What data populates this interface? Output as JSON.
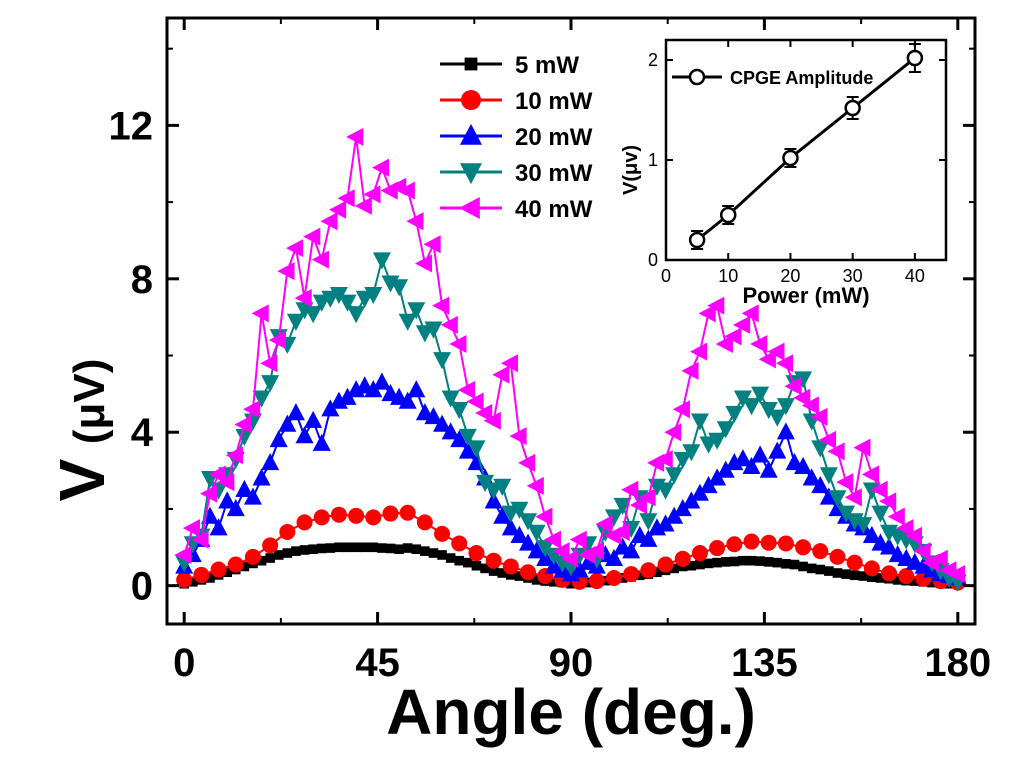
{
  "chart_data": [
    {
      "type": "line",
      "xlabel": "Angle (deg.)",
      "ylabel_main": "V",
      "ylabel_unit": "(μV)",
      "xlim": [
        -4,
        184
      ],
      "ylim": [
        -1,
        14.8
      ],
      "xticks": [
        0,
        45,
        90,
        135,
        180
      ],
      "xtick_labels": [
        "0",
        "45",
        "90",
        "135",
        "180"
      ],
      "yticks": [
        0,
        4,
        8,
        12
      ],
      "ytick_labels": [
        "0",
        "4",
        "8",
        "12"
      ],
      "legend_position": "top-center",
      "series": [
        {
          "name": "5 mW",
          "color": "#000000",
          "marker": "square",
          "x": [
            0,
            2,
            4,
            6,
            8,
            10,
            12,
            14,
            16,
            18,
            20,
            22,
            24,
            26,
            28,
            30,
            32,
            34,
            36,
            38,
            40,
            42,
            44,
            46,
            48,
            50,
            52,
            54,
            56,
            58,
            60,
            62,
            64,
            66,
            68,
            70,
            72,
            74,
            76,
            78,
            80,
            82,
            84,
            86,
            88,
            90,
            92,
            94,
            96,
            98,
            100,
            102,
            104,
            106,
            108,
            110,
            112,
            114,
            116,
            118,
            120,
            122,
            124,
            126,
            128,
            130,
            132,
            134,
            136,
            138,
            140,
            142,
            144,
            146,
            148,
            150,
            152,
            154,
            156,
            158,
            160,
            162,
            164,
            166,
            168,
            170,
            172,
            174,
            176,
            178,
            180
          ],
          "y": [
            0.05,
            0.1,
            0.15,
            0.2,
            0.28,
            0.35,
            0.42,
            0.5,
            0.58,
            0.65,
            0.72,
            0.8,
            0.85,
            0.9,
            0.93,
            0.95,
            0.97,
            0.98,
            1.0,
            1.0,
            1.0,
            1.0,
            1.0,
            0.98,
            0.97,
            0.95,
            0.98,
            0.95,
            0.9,
            0.85,
            0.8,
            0.72,
            0.65,
            0.6,
            0.52,
            0.45,
            0.38,
            0.33,
            0.28,
            0.25,
            0.2,
            0.15,
            0.12,
            0.1,
            0.08,
            0.05,
            0.05,
            0.08,
            0.1,
            0.13,
            0.16,
            0.2,
            0.23,
            0.27,
            0.3,
            0.35,
            0.4,
            0.45,
            0.5,
            0.52,
            0.55,
            0.58,
            0.6,
            0.62,
            0.63,
            0.65,
            0.65,
            0.64,
            0.62,
            0.6,
            0.57,
            0.55,
            0.5,
            0.45,
            0.42,
            0.38,
            0.33,
            0.3,
            0.27,
            0.25,
            0.22,
            0.2,
            0.18,
            0.15,
            0.13,
            0.12,
            0.1,
            0.08,
            0.06,
            0.05,
            0.05
          ]
        },
        {
          "name": "10 mW",
          "color": "#ff0000",
          "marker": "circle",
          "x": [
            0,
            4,
            8,
            12,
            16,
            20,
            24,
            28,
            32,
            36,
            40,
            44,
            48,
            52,
            56,
            60,
            64,
            68,
            72,
            76,
            80,
            84,
            88,
            92,
            96,
            100,
            104,
            108,
            112,
            116,
            120,
            124,
            128,
            132,
            136,
            140,
            144,
            148,
            152,
            156,
            160,
            164,
            168,
            172,
            176,
            180
          ],
          "y": [
            0.15,
            0.28,
            0.42,
            0.55,
            0.75,
            1.05,
            1.4,
            1.65,
            1.78,
            1.85,
            1.82,
            1.78,
            1.88,
            1.9,
            1.65,
            1.35,
            1.1,
            0.85,
            0.65,
            0.5,
            0.35,
            0.25,
            0.15,
            0.1,
            0.12,
            0.2,
            0.3,
            0.4,
            0.55,
            0.7,
            0.85,
            0.98,
            1.08,
            1.15,
            1.12,
            1.1,
            1.0,
            0.9,
            0.75,
            0.6,
            0.45,
            0.32,
            0.25,
            0.18,
            0.12,
            0.08
          ]
        },
        {
          "name": "20 mW",
          "color": "#0000ff",
          "marker": "triangle-up",
          "x": [
            0,
            2,
            4,
            6,
            8,
            10,
            12,
            14,
            16,
            18,
            20,
            22,
            24,
            26,
            28,
            30,
            32,
            34,
            36,
            38,
            40,
            42,
            44,
            46,
            48,
            50,
            52,
            54,
            56,
            58,
            60,
            62,
            64,
            66,
            68,
            70,
            72,
            74,
            76,
            78,
            80,
            82,
            84,
            86,
            88,
            90,
            92,
            94,
            96,
            98,
            100,
            102,
            104,
            106,
            108,
            110,
            112,
            114,
            116,
            118,
            120,
            122,
            124,
            126,
            128,
            130,
            132,
            134,
            136,
            138,
            140,
            142,
            144,
            146,
            148,
            150,
            152,
            154,
            156,
            158,
            160,
            162,
            164,
            166,
            168,
            170,
            172,
            174,
            176,
            178,
            180
          ],
          "y": [
            0.5,
            0.8,
            1.2,
            1.8,
            1.5,
            2.2,
            2.0,
            2.5,
            2.3,
            2.8,
            3.2,
            3.8,
            4.2,
            4.5,
            3.9,
            4.3,
            3.7,
            4.6,
            4.8,
            4.9,
            5.1,
            5.2,
            5.1,
            5.3,
            5.0,
            4.9,
            4.8,
            5.1,
            4.5,
            4.4,
            4.2,
            4.0,
            3.8,
            3.5,
            3.2,
            2.8,
            2.2,
            1.8,
            1.5,
            1.3,
            1.1,
            0.9,
            0.7,
            0.5,
            0.4,
            0.3,
            0.4,
            0.6,
            0.5,
            0.8,
            0.7,
            1.0,
            0.9,
            1.3,
            1.2,
            1.5,
            1.6,
            1.8,
            2.0,
            2.2,
            2.4,
            2.6,
            2.8,
            3.0,
            3.2,
            3.3,
            3.1,
            3.4,
            3.0,
            3.5,
            4.0,
            3.2,
            3.1,
            2.8,
            2.6,
            2.3,
            2.0,
            1.8,
            1.6,
            1.5,
            1.3,
            1.1,
            1.0,
            0.8,
            0.7,
            0.6,
            0.5,
            0.4,
            0.3,
            0.25,
            0.2
          ]
        },
        {
          "name": "30 mW",
          "color": "#008080",
          "marker": "triangle-down",
          "x": [
            0,
            2,
            4,
            6,
            8,
            10,
            12,
            14,
            16,
            18,
            20,
            22,
            24,
            26,
            28,
            30,
            32,
            34,
            36,
            38,
            40,
            42,
            44,
            46,
            48,
            50,
            52,
            54,
            56,
            58,
            60,
            62,
            64,
            66,
            68,
            70,
            72,
            74,
            76,
            78,
            80,
            82,
            84,
            86,
            88,
            90,
            92,
            94,
            96,
            98,
            100,
            102,
            104,
            106,
            108,
            110,
            112,
            114,
            116,
            118,
            120,
            122,
            124,
            126,
            128,
            130,
            132,
            134,
            136,
            138,
            140,
            142,
            144,
            146,
            148,
            150,
            152,
            154,
            156,
            158,
            160,
            162,
            164,
            166,
            168,
            170,
            172,
            174,
            176,
            178,
            180
          ],
          "y": [
            0.6,
            1.1,
            1.3,
            2.8,
            2.5,
            2.9,
            3.3,
            3.9,
            4.3,
            4.9,
            5.3,
            6.5,
            6.3,
            6.9,
            7.2,
            7.1,
            7.4,
            7.5,
            7.6,
            7.4,
            7.1,
            7.5,
            7.6,
            8.5,
            7.9,
            7.8,
            6.9,
            7.2,
            6.6,
            6.7,
            5.9,
            4.9,
            4.6,
            3.9,
            3.6,
            2.7,
            2.5,
            2.6,
            1.9,
            2.0,
            1.7,
            1.4,
            1.0,
            0.8,
            0.6,
            0.5,
            0.8,
            1.1,
            0.7,
            1.4,
            1.8,
            2.1,
            1.5,
            2.3,
            1.7,
            2.6,
            2.5,
            2.9,
            3.3,
            3.5,
            4.3,
            3.7,
            3.8,
            4.1,
            4.5,
            4.9,
            4.7,
            5.0,
            4.6,
            4.4,
            4.7,
            5.3,
            5.4,
            4.3,
            3.6,
            2.9,
            2.3,
            1.9,
            1.7,
            1.6,
            2.5,
            1.9,
            1.4,
            1.3,
            1.2,
            1.1,
            0.9,
            0.6,
            0.4,
            0.2,
            0.1
          ]
        },
        {
          "name": "40 mW",
          "color": "#ff00ff",
          "marker": "triangle-left",
          "x": [
            0,
            2,
            4,
            6,
            8,
            10,
            12,
            14,
            16,
            18,
            20,
            22,
            24,
            26,
            28,
            30,
            32,
            34,
            36,
            38,
            40,
            42,
            44,
            46,
            48,
            50,
            52,
            54,
            56,
            58,
            60,
            62,
            64,
            66,
            68,
            70,
            72,
            74,
            76,
            78,
            80,
            82,
            84,
            86,
            88,
            90,
            92,
            94,
            96,
            98,
            100,
            102,
            104,
            106,
            108,
            110,
            112,
            114,
            116,
            118,
            120,
            122,
            124,
            126,
            128,
            130,
            132,
            134,
            136,
            138,
            140,
            142,
            144,
            146,
            148,
            150,
            152,
            154,
            156,
            158,
            160,
            162,
            164,
            166,
            168,
            170,
            172,
            174,
            176,
            178,
            180
          ],
          "y": [
            0.8,
            1.5,
            1.2,
            2.4,
            2.9,
            2.7,
            3.4,
            4.2,
            4.6,
            7.1,
            5.8,
            6.4,
            8.2,
            8.8,
            7.5,
            9.1,
            8.5,
            9.5,
            9.8,
            10.1,
            11.7,
            9.9,
            10.2,
            10.9,
            10.3,
            10.4,
            10.3,
            9.5,
            8.4,
            8.9,
            7.3,
            6.8,
            6.3,
            5.1,
            4.8,
            4.5,
            4.3,
            5.5,
            5.8,
            3.9,
            3.2,
            2.6,
            1.8,
            1.2,
            0.9,
            0.7,
            1.2,
            0.8,
            0.9,
            1.6,
            1.3,
            1.4,
            2.5,
            2.1,
            2.3,
            3.2,
            3.3,
            4.0,
            4.6,
            5.6,
            6.1,
            7.1,
            7.3,
            6.3,
            6.5,
            6.8,
            7.1,
            6.3,
            5.9,
            6.1,
            5.8,
            5.2,
            4.9,
            4.7,
            4.4,
            3.8,
            3.5,
            2.7,
            2.3,
            3.6,
            2.9,
            2.5,
            2.2,
            1.8,
            1.5,
            1.3,
            0.9,
            0.6,
            0.7,
            0.4,
            0.3
          ]
        }
      ]
    },
    {
      "type": "scatter",
      "legend_label": "CPGE Amplitude",
      "xlabel": "Power (mW)",
      "ylabel": "V(μv)",
      "xlim": [
        0,
        45
      ],
      "ylim": [
        0,
        2.2
      ],
      "xticks": [
        0,
        10,
        20,
        30,
        40
      ],
      "xtick_labels": [
        "0",
        "10",
        "20",
        "30",
        "40"
      ],
      "yticks": [
        0,
        1,
        2
      ],
      "ytick_labels": [
        "0",
        "1",
        "2"
      ],
      "x": [
        5,
        10,
        20,
        30,
        40
      ],
      "y": [
        0.2,
        0.45,
        1.02,
        1.52,
        2.02
      ],
      "yerr": [
        0.05,
        0.05,
        0.05,
        0.07,
        0.1
      ]
    }
  ]
}
